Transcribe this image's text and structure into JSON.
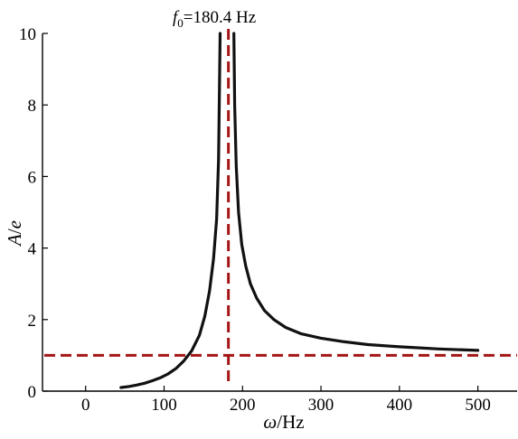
{
  "chart_data": {
    "type": "line",
    "title": "",
    "xlabel": {
      "var": "ω",
      "unit": "/Hz"
    },
    "ylabel": {
      "var": "A",
      "sep": "/",
      "unit": "e"
    },
    "xlim": [
      -55,
      550
    ],
    "ylim": [
      0,
      10
    ],
    "xticks": [
      0,
      100,
      200,
      300,
      400,
      500
    ],
    "yticks": [
      0,
      2,
      4,
      6,
      8,
      10
    ],
    "grid": false,
    "legend": "none",
    "annotation": {
      "symbol": "f",
      "subscript": "0",
      "value": "=180.4 Hz"
    },
    "series": [
      {
        "color": "#111111",
        "style": "solid",
        "x": [
          45,
          55,
          65,
          75,
          85,
          95,
          105,
          115,
          125,
          135,
          145,
          152,
          158,
          163,
          167,
          169.5,
          171.5
        ],
        "y": [
          0.1,
          0.13,
          0.17,
          0.22,
          0.29,
          0.37,
          0.48,
          0.63,
          0.84,
          1.12,
          1.56,
          2.1,
          2.8,
          3.7,
          4.8,
          6.5,
          10.0
        ]
      },
      {
        "color": "#111111",
        "style": "solid",
        "x": [
          189,
          190,
          192,
          195,
          199,
          204,
          210,
          218,
          228,
          240,
          255,
          275,
          300,
          330,
          360,
          400,
          450,
          500
        ],
        "y": [
          10.0,
          8.0,
          6.3,
          5.0,
          4.1,
          3.5,
          3.0,
          2.6,
          2.25,
          2.0,
          1.78,
          1.6,
          1.48,
          1.38,
          1.3,
          1.24,
          1.18,
          1.14
        ]
      }
    ],
    "reference_lines": [
      {
        "orientation": "vertical",
        "x": 182,
        "color": "#a51515",
        "style": "dashed"
      },
      {
        "orientation": "horizontal",
        "y": 1.0,
        "color": "#a51515",
        "style": "dashed"
      }
    ]
  }
}
